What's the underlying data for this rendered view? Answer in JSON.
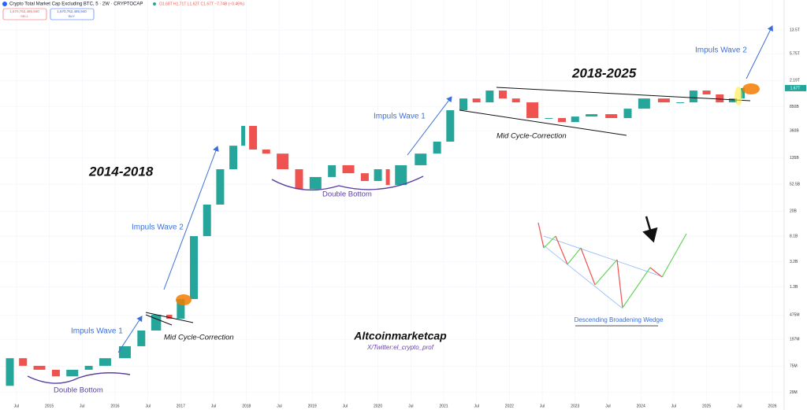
{
  "chart_data": {
    "type": "candlestick",
    "title": "Crypto Total Market Cap Excluding BTC, 5 · 2W · CRYPTOCAP",
    "subtitle": "O1.68T H1.71T L1.62T C1.67T −7.74B (−0.46%)",
    "toolbar": {
      "price": "1,670,762,485,940",
      "sell": "SELL",
      "buy": "BUY"
    },
    "log_scale": true,
    "grid": true,
    "colors": {
      "up": "#26a69a",
      "down": "#ef5350",
      "grid": "#f0f3fa"
    },
    "last_price_label": "1.67T",
    "x": [
      2014.3,
      2014.5,
      2014.7,
      2015,
      2015.2,
      2015.5,
      2015.7,
      2016,
      2016.3,
      2016.5,
      2016.75,
      2016.9,
      2017.1,
      2017.3,
      2017.5,
      2017.7,
      2017.9,
      2018,
      2018.2,
      2018.4,
      2018.7,
      2018.9,
      2019.2,
      2019.4,
      2019.7,
      2019.9,
      2020.1,
      2020.2,
      2020.5,
      2020.8,
      2021,
      2021.2,
      2021.4,
      2021.6,
      2021.8,
      2022,
      2022.2,
      2022.5,
      2022.7,
      2022.9,
      2023.1,
      2023.4,
      2023.7,
      2023.9,
      2024.2,
      2024.5,
      2024.7,
      2024.9,
      2025.1,
      2025.3,
      2025.5,
      2025.6
    ],
    "series": [
      {
        "name": "Crypto Total Market Cap Excluding BTC",
        "values": [
          37000000,
          100000000,
          76000000,
          66000000,
          52000000,
          66000000,
          76000000,
          100000000,
          154000000,
          271000000,
          478000000,
          414000000,
          841000000,
          8100000000,
          25200000000,
          90000000000,
          210000000000,
          428000000000,
          183000000000,
          158000000000,
          90000000000,
          44000000000,
          68000000000,
          104000000000,
          78000000000,
          59000000000,
          90000000000,
          51000000000,
          104000000000,
          158000000000,
          243000000000,
          753000000000,
          1150000000000,
          1000000000000,
          1530000000000,
          1150000000000,
          1000000000000,
          568000000000,
          568000000000,
          492000000000,
          600000000000,
          653000000000,
          568000000000,
          796000000000,
          1150000000000,
          1000000000000,
          1000000000000,
          1530000000000,
          1330000000000,
          1000000000000,
          1150000000000,
          1670000000000
        ]
      }
    ],
    "xlim": [
      2014.25,
      2026.18
    ],
    "xticks": [
      {
        "value": 2014.5,
        "label": "Jul"
      },
      2015,
      {
        "value": 2015.5,
        "label": "Jul"
      },
      2016,
      {
        "value": 2016.5,
        "label": "Jul"
      },
      2017,
      {
        "value": 2017.5,
        "label": "Jul"
      },
      2018,
      {
        "value": 2018.5,
        "label": "Jul"
      },
      2019,
      {
        "value": 2019.5,
        "label": "Jul"
      },
      2020,
      {
        "value": 2020.5,
        "label": "Jul"
      },
      2021,
      {
        "value": 2021.5,
        "label": "Jul"
      },
      2022,
      {
        "value": 2022.5,
        "label": "Jul"
      },
      2023,
      {
        "value": 2023.5,
        "label": "Jul"
      },
      2024,
      {
        "value": 2024.5,
        "label": "Jul"
      },
      2025,
      {
        "value": 2025.5,
        "label": "Jul"
      },
      2026
    ],
    "ylim": [
      20000000,
      30000000000000
    ],
    "yticks": [
      {
        "value": 29000000,
        "label": "29M"
      },
      {
        "value": 75000000,
        "label": "75M"
      },
      {
        "value": 197000000,
        "label": "197M"
      },
      {
        "value": 475000000,
        "label": "475M"
      },
      {
        "value": 1300000000,
        "label": "1.3B"
      },
      {
        "value": 3200000000,
        "label": "3.2B"
      },
      {
        "value": 8100000000,
        "label": "8.1B"
      },
      {
        "value": 20000000000,
        "label": "20B"
      },
      {
        "value": 52500000000,
        "label": "52.5B"
      },
      {
        "value": 135000000000,
        "label": "135B"
      },
      {
        "value": 360000000000,
        "label": "360B"
      },
      {
        "value": 850000000000,
        "label": "850B"
      },
      {
        "value": 2190000000000,
        "label": "2.19T"
      },
      {
        "value": 5750000000000,
        "label": "5.75T"
      },
      {
        "value": 13500000000000,
        "label": "13.5T"
      }
    ],
    "annotations": [
      "Impuls Wave 1",
      "Impuls Wave 2",
      "2014-2018",
      "Double Bottom",
      "Mid Cycle-Correction",
      "Double Bottom",
      "Impuls Wave 1",
      "2018-2025",
      "Mid Cycle-Correction",
      "Impuls Wave 2",
      "Altcoinmarketcap",
      "X/Twitter:el_crypto_prof",
      "Descending Broadening Wedge"
    ]
  }
}
